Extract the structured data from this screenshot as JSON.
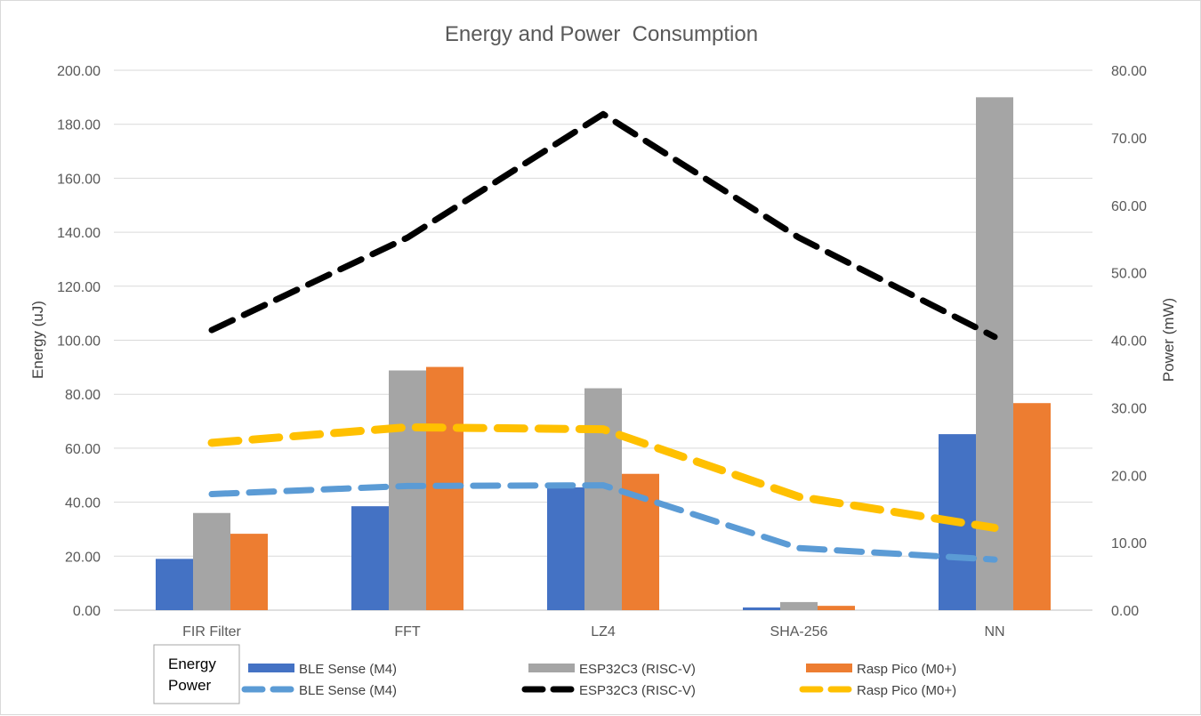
{
  "chart_data": {
    "type": "bar",
    "title": "Energy and Power  Consumption",
    "categories": [
      "FIR Filter",
      "FFT",
      "LZ4",
      "SHA-256",
      "NN"
    ],
    "ylabel": "Energy (uJ)",
    "y2label": "Power (mW)",
    "ylim": [
      0,
      200
    ],
    "y2lim": [
      0,
      80
    ],
    "yticks": [
      "0.00",
      "20.00",
      "40.00",
      "60.00",
      "80.00",
      "100.00",
      "120.00",
      "140.00",
      "160.00",
      "180.00",
      "200.00"
    ],
    "y2ticks": [
      "0.00",
      "10.00",
      "20.00",
      "30.00",
      "40.00",
      "50.00",
      "60.00",
      "70.00",
      "80.00"
    ],
    "grid": true,
    "legend_position": "bottom",
    "legend_group_labels": [
      "Energy",
      "Power"
    ],
    "energy_series": [
      {
        "name": "BLE Sense (M4)",
        "color": "#4472c4",
        "values": [
          19.0,
          38.5,
          45.5,
          1.0,
          65.2
        ]
      },
      {
        "name": "ESP32C3 (RISC-V)",
        "color": "#a5a5a5",
        "values": [
          36.0,
          88.8,
          82.2,
          3.0,
          190.0
        ]
      },
      {
        "name": "Rasp Pico (M0+)",
        "color": "#ed7d31",
        "values": [
          28.3,
          90.1,
          50.5,
          1.6,
          76.7
        ]
      }
    ],
    "power_series": [
      {
        "name": "BLE Sense (M4)",
        "color": "#5b9bd5",
        "values": [
          17.2,
          18.4,
          18.5,
          9.2,
          7.5
        ]
      },
      {
        "name": "ESP32C3 (RISC-V)",
        "color": "#000000",
        "values": [
          41.5,
          55.2,
          73.5,
          55.2,
          40.5
        ]
      },
      {
        "name": "Rasp Pico (M0+)",
        "color": "#ffc000",
        "values": [
          24.8,
          27.1,
          26.8,
          16.8,
          12.2
        ]
      }
    ]
  }
}
